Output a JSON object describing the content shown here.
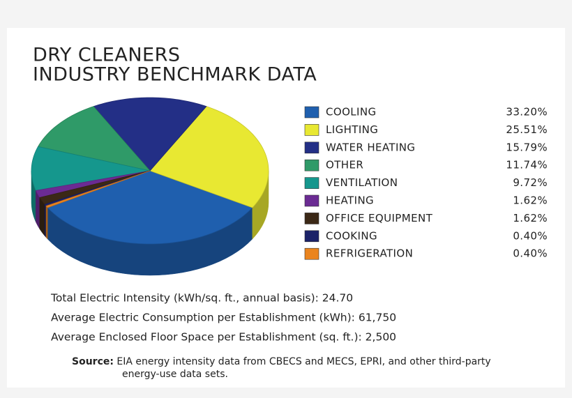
{
  "chart_data": {
    "type": "pie",
    "title": [
      "DRY CLEANERS",
      "INDUSTRY BENCHMARK DATA"
    ],
    "categories": [
      "COOLING",
      "LIGHTING",
      "WATER HEATING",
      "OTHER",
      "VENTILATION",
      "HEATING",
      "OFFICE EQUIPMENT",
      "COOKING",
      "REFRIGERATION"
    ],
    "values": [
      33.2,
      25.51,
      15.79,
      11.74,
      9.72,
      1.62,
      1.62,
      0.4,
      0.4
    ],
    "value_labels": [
      "33.20%",
      "25.51%",
      "15.79%",
      "11.74%",
      "9.72%",
      "1.62%",
      "1.62%",
      "0.40%",
      "0.40%"
    ],
    "colors": [
      "#1f5fae",
      "#e8e832",
      "#232f86",
      "#2f9a68",
      "#15978d",
      "#6b2b93",
      "#3b2816",
      "#1b2268",
      "#ea841e"
    ],
    "notes": [
      "Total Electric Intensity (kWh/sq. ft., annual basis): 24.70",
      "Average Electric Consumption per Establishment (kWh): 61,750",
      "Average Enclosed Floor Space per Establishment (sq. ft.): 2,500"
    ],
    "source_label": "Source:",
    "source_text": [
      "EIA energy intensity data from CBECS and MECS, EPRI, and other third-party",
      "energy-use data sets."
    ]
  }
}
